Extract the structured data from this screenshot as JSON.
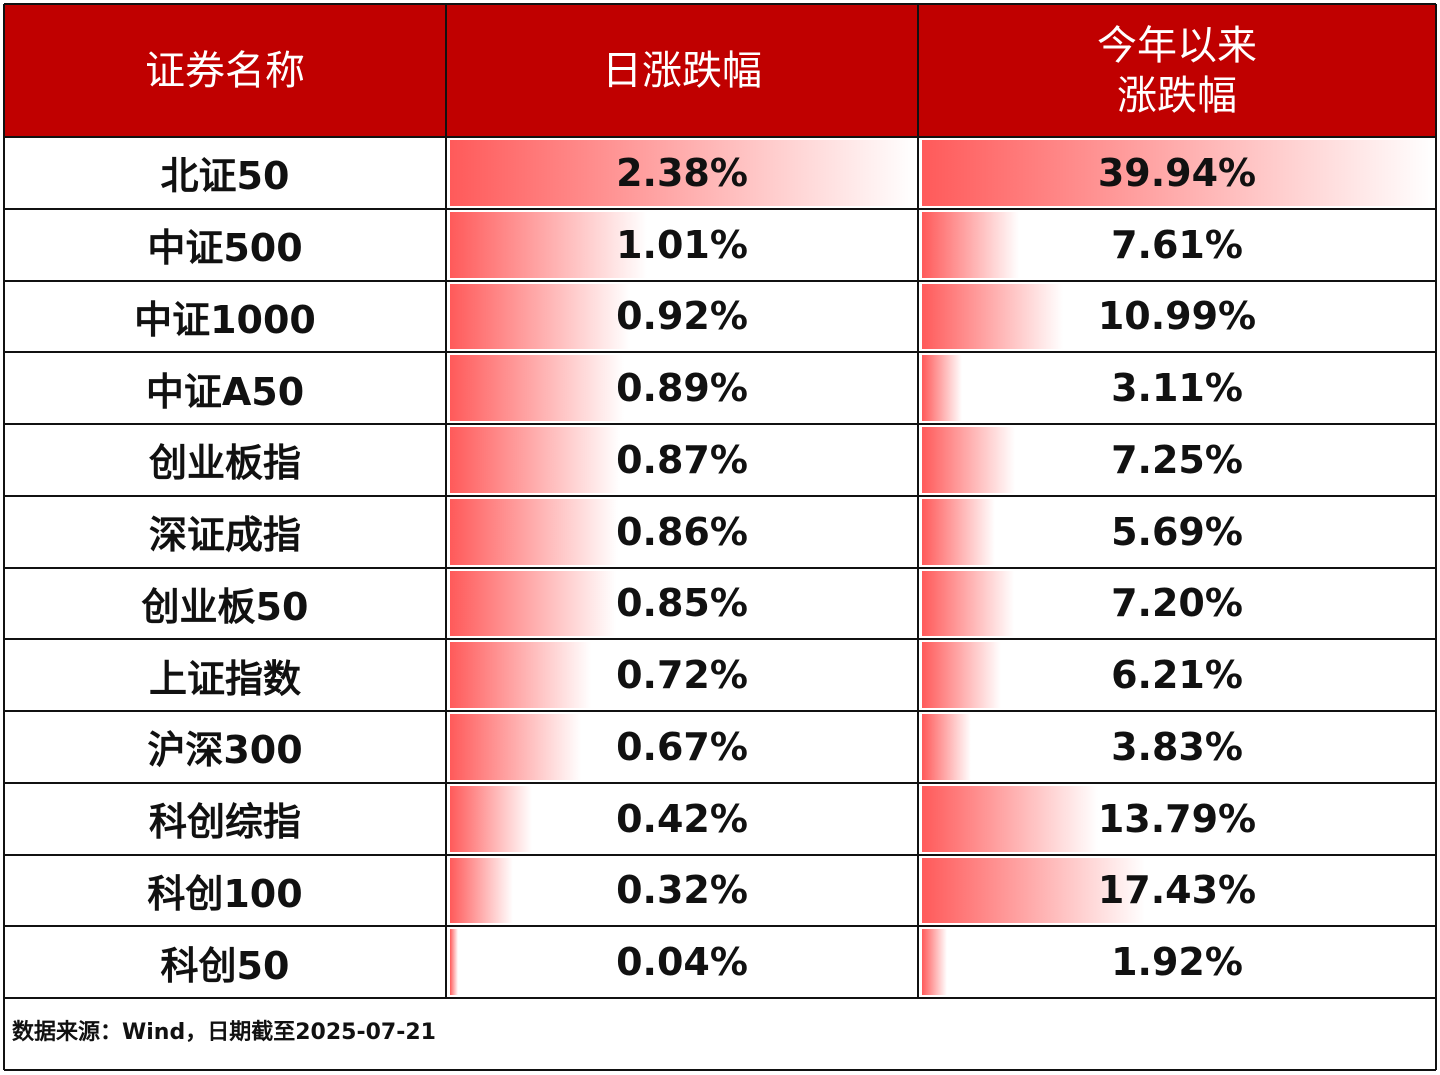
{
  "table": {
    "headers": [
      [
        "证券名称"
      ],
      [
        "日涨跌幅"
      ],
      [
        "今年以来",
        "涨跌幅"
      ]
    ],
    "names": [
      "北证50",
      "中证500",
      "中证1000",
      "中证A50",
      "创业板指",
      "深证成指",
      "创业板50",
      "上证指数",
      "沪深300",
      "科创综指",
      "科创100",
      "科创50"
    ],
    "columns": [
      {
        "values": [
          2.38,
          1.01,
          0.92,
          0.89,
          0.87,
          0.86,
          0.85,
          0.72,
          0.67,
          0.42,
          0.32,
          0.04
        ],
        "value_labels": [
          "2.38%",
          "1.01%",
          "0.92%",
          "0.89%",
          "0.87%",
          "0.86%",
          "0.85%",
          "0.72%",
          "0.67%",
          "0.42%",
          "0.32%",
          "0.04%"
        ]
      },
      {
        "values": [
          39.94,
          7.61,
          10.99,
          3.11,
          7.25,
          5.69,
          7.2,
          6.21,
          3.83,
          13.79,
          17.43,
          1.92
        ],
        "value_labels": [
          "39.94%",
          "7.61%",
          "10.99%",
          "3.11%",
          "7.25%",
          "5.69%",
          "7.20%",
          "6.21%",
          "3.83%",
          "13.79%",
          "17.43%",
          "1.92%"
        ]
      }
    ],
    "bar_color": "#ff5a5a",
    "header_color": "#c00000",
    "footer": "数据来源：Wind，日期截至2025-07-21"
  }
}
